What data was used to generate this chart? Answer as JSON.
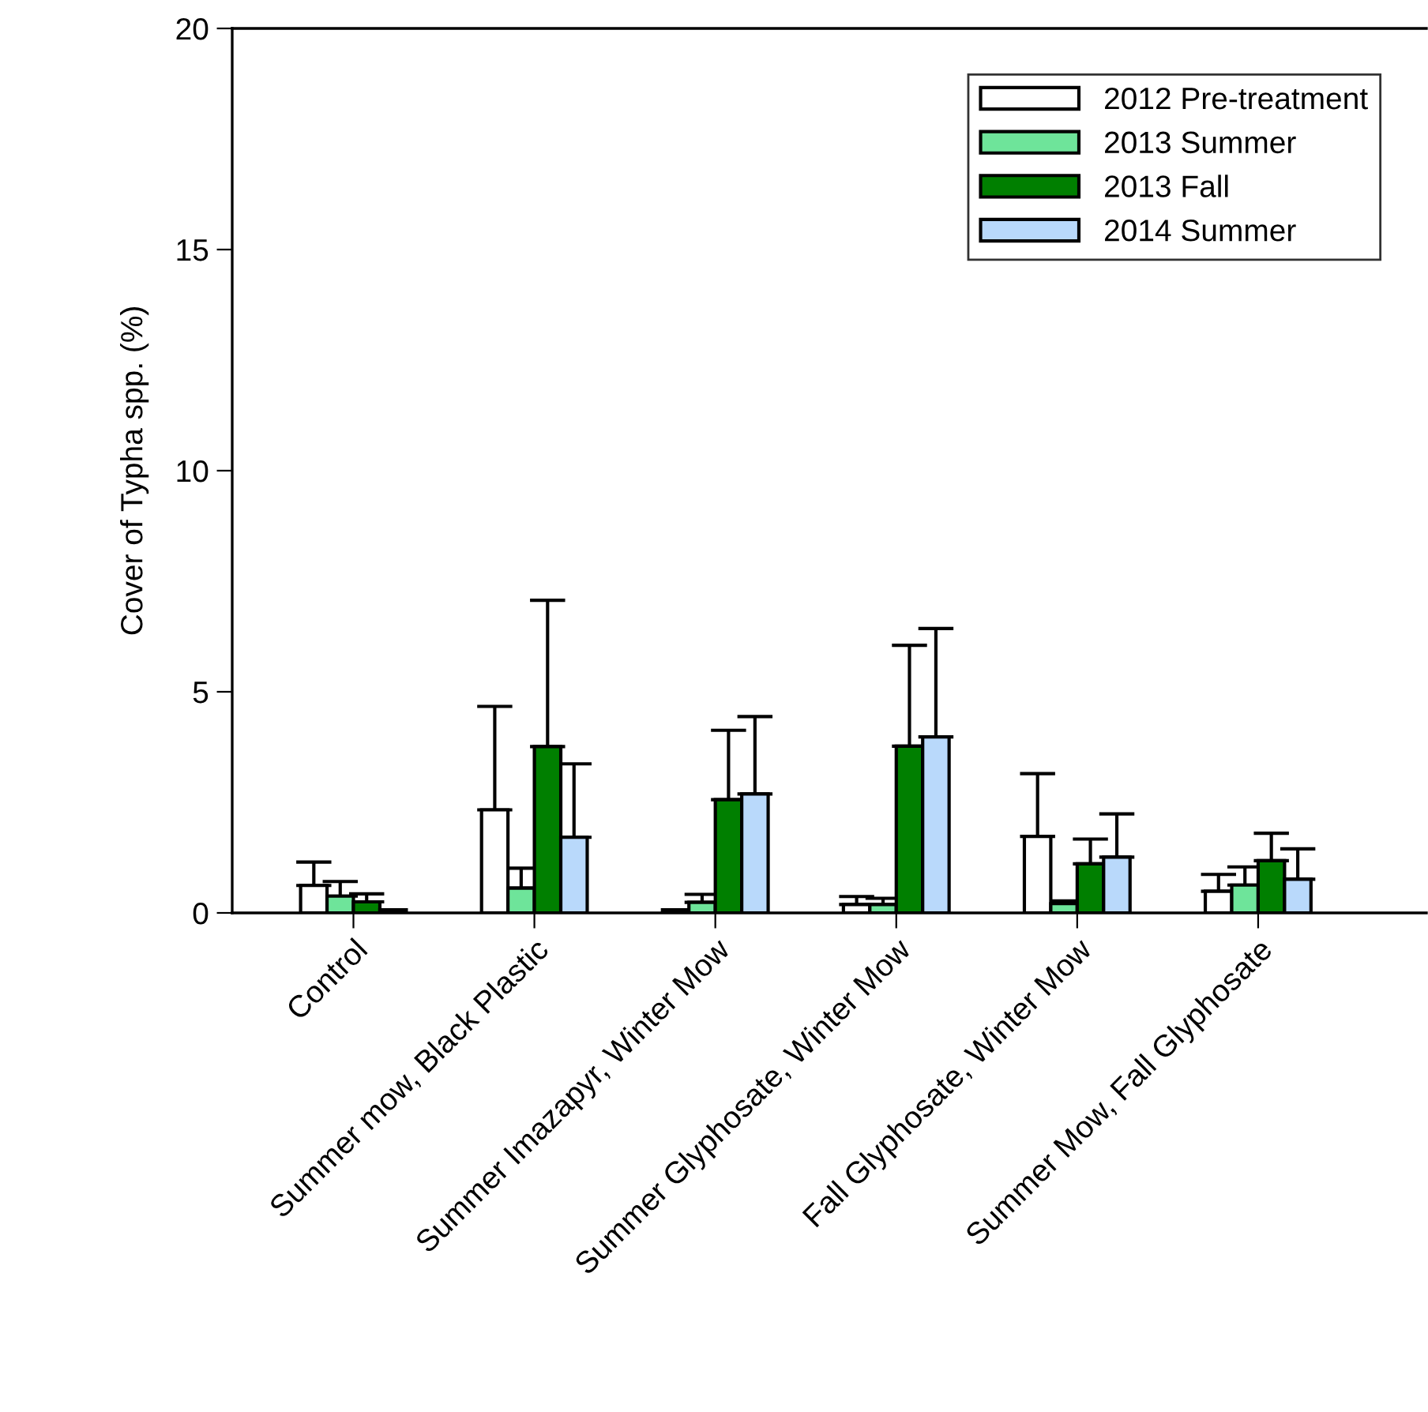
{
  "chart_data": {
    "type": "bar",
    "ylabel": "Cover of Typha spp. (%)",
    "categories": [
      "Control",
      "Summer mow, Black Plastic",
      "Summer Imazapyr, Winter Mow",
      "Summer Glyphosate, Winter Mow",
      "Fall Glyphosate, Winter Mow",
      "Summer Mow, Fall Glyphosate"
    ],
    "series": [
      {
        "name": "2012 Pre-treatment",
        "color": "#ffffff",
        "values": [
          0.62,
          2.33,
          0.07,
          0.19,
          1.73,
          0.49
        ],
        "errors": [
          [
            0.62,
            1.15
          ],
          [
            2.33,
            4.67
          ],
          null,
          [
            0.19,
            0.37
          ],
          [
            1.73,
            3.15
          ],
          [
            0.49,
            0.87
          ]
        ]
      },
      {
        "name": "2013 Summer",
        "color": "#6ee49a",
        "values": [
          0.38,
          0.56,
          0.24,
          0.19,
          0.21,
          0.63
        ],
        "errors": [
          [
            0.38,
            0.71
          ],
          [
            0.56,
            1.01
          ],
          [
            0.24,
            0.42
          ],
          [
            0.19,
            0.33
          ],
          [
            0.21,
            0.27
          ],
          [
            0.63,
            1.04
          ]
        ]
      },
      {
        "name": "2013 Fall",
        "color": "#007f00",
        "values": [
          0.25,
          3.76,
          2.56,
          3.77,
          1.11,
          1.18
        ],
        "errors": [
          [
            0.25,
            0.43
          ],
          [
            3.76,
            7.07
          ],
          [
            2.56,
            4.13
          ],
          [
            3.77,
            6.05
          ],
          [
            1.11,
            1.67
          ],
          [
            1.18,
            1.8
          ]
        ]
      },
      {
        "name": "2014 Summer",
        "color": "#b9d9fb",
        "values": [
          0.07,
          1.71,
          2.69,
          3.98,
          1.26,
          0.76
        ],
        "errors": [
          null,
          [
            1.71,
            3.37
          ],
          [
            2.69,
            4.44
          ],
          [
            3.98,
            6.43
          ],
          [
            1.26,
            2.24
          ],
          [
            0.76,
            1.45
          ]
        ]
      }
    ],
    "ylim": [
      0,
      20
    ],
    "yticks": [
      0,
      5,
      10,
      15,
      20
    ],
    "grid": false,
    "legend": "top right"
  }
}
